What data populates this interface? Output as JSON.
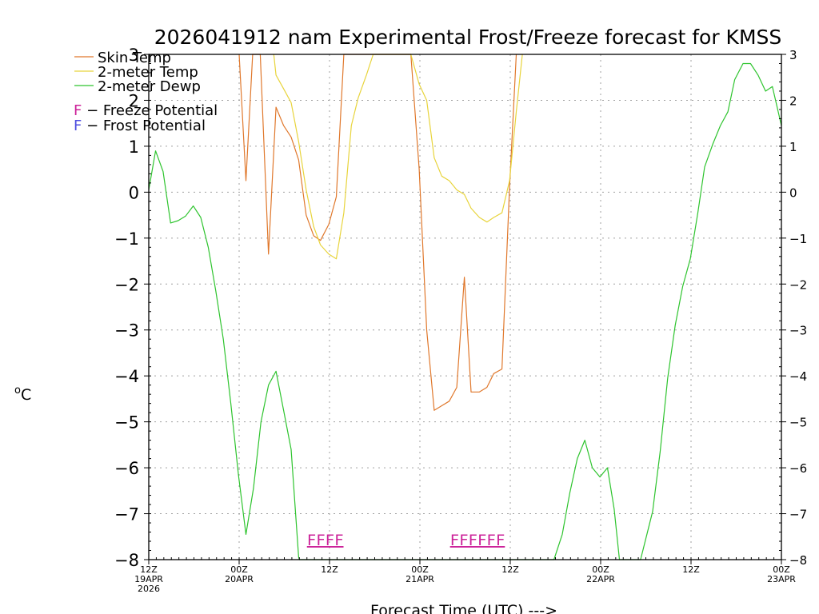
{
  "chart_data": {
    "type": "line",
    "title": "2026041912 nam Experimental Frost/Freeze forecast for KMSS",
    "ylabel_base": "o",
    "ylabel_unit": "C",
    "xlabel": "Forecast Time (UTC) --->",
    "ylim": [
      -8,
      3
    ],
    "xlim": [
      0,
      84
    ],
    "yticks": [
      3,
      2,
      1,
      0,
      -1,
      -2,
      -3,
      -4,
      -5,
      -6,
      -7,
      -8
    ],
    "ytick_labels": [
      "3",
      "2",
      "1",
      "0",
      "−1",
      "−2",
      "−3",
      "−4",
      "−5",
      "−6",
      "−7",
      "−8"
    ],
    "xticks": [
      {
        "hour": 0,
        "lines": [
          "12Z",
          "19APR",
          "2026"
        ]
      },
      {
        "hour": 12,
        "lines": [
          "00Z",
          "20APR"
        ]
      },
      {
        "hour": 24,
        "lines": [
          "12Z"
        ]
      },
      {
        "hour": 36,
        "lines": [
          "00Z",
          "21APR"
        ]
      },
      {
        "hour": 48,
        "lines": [
          "12Z"
        ]
      },
      {
        "hour": 60,
        "lines": [
          "00Z",
          "22APR"
        ]
      },
      {
        "hour": 72,
        "lines": [
          "12Z"
        ]
      },
      {
        "hour": 84,
        "lines": [
          "00Z",
          "23APR"
        ]
      }
    ],
    "series": [
      {
        "name": "Skin Temp",
        "color": "#e0782c",
        "points": [
          [
            12,
            3.0
          ],
          [
            12.9,
            0.25
          ],
          [
            13.8,
            3.0
          ],
          [
            14.8,
            3.0
          ],
          [
            15.9,
            -1.35
          ],
          [
            16.9,
            1.85
          ],
          [
            17.9,
            1.45
          ],
          [
            18.9,
            1.2
          ],
          [
            19.9,
            0.7
          ],
          [
            20.9,
            -0.5
          ],
          [
            21.9,
            -0.95
          ],
          [
            22.8,
            -1.05
          ],
          [
            23.9,
            -0.7
          ],
          [
            24.9,
            -0.1
          ],
          [
            25.9,
            3.0
          ],
          [
            34.8,
            3.0
          ],
          [
            35.9,
            0.5
          ],
          [
            36.9,
            -3.0
          ],
          [
            37.9,
            -4.75
          ],
          [
            38.9,
            -4.65
          ],
          [
            39.9,
            -4.55
          ],
          [
            40.9,
            -4.25
          ],
          [
            41.9,
            -1.85
          ],
          [
            42.8,
            -4.35
          ],
          [
            43.9,
            -4.35
          ],
          [
            44.9,
            -4.25
          ],
          [
            45.8,
            -3.95
          ],
          [
            46.9,
            -3.85
          ],
          [
            47.9,
            0.1
          ],
          [
            48.8,
            3.0
          ]
        ]
      },
      {
        "name": "2-meter Temp",
        "color": "#e8d43c",
        "points": [
          [
            16.6,
            3.0
          ],
          [
            16.9,
            2.55
          ],
          [
            17.9,
            2.25
          ],
          [
            18.9,
            1.95
          ],
          [
            19.9,
            1.1
          ],
          [
            20.9,
            0.05
          ],
          [
            21.9,
            -0.75
          ],
          [
            22.8,
            -1.15
          ],
          [
            23.9,
            -1.35
          ],
          [
            24.9,
            -1.45
          ],
          [
            25.9,
            -0.45
          ],
          [
            26.9,
            1.45
          ],
          [
            27.8,
            2.05
          ],
          [
            28.9,
            2.55
          ],
          [
            29.8,
            3.0
          ],
          [
            34.8,
            3.0
          ],
          [
            35.9,
            2.35
          ],
          [
            36.9,
            2.0
          ],
          [
            37.9,
            0.75
          ],
          [
            38.9,
            0.35
          ],
          [
            39.9,
            0.25
          ],
          [
            40.9,
            0.05
          ],
          [
            41.9,
            -0.05
          ],
          [
            42.8,
            -0.35
          ],
          [
            43.9,
            -0.55
          ],
          [
            44.9,
            -0.65
          ],
          [
            45.8,
            -0.55
          ],
          [
            46.9,
            -0.45
          ],
          [
            47.9,
            0.25
          ],
          [
            48.8,
            1.75
          ],
          [
            49.6,
            3.0
          ]
        ]
      },
      {
        "name": "2-meter Dewp",
        "color": "#2ec42e",
        "points": [
          [
            0,
            0.05
          ],
          [
            0.9,
            0.9
          ],
          [
            1.9,
            0.45
          ],
          [
            2.9,
            -0.67
          ],
          [
            3.9,
            -0.62
          ],
          [
            4.9,
            -0.52
          ],
          [
            5.9,
            -0.3
          ],
          [
            6.9,
            -0.55
          ],
          [
            7.9,
            -1.2
          ],
          [
            8.9,
            -2.15
          ],
          [
            9.9,
            -3.2
          ],
          [
            10.9,
            -4.6
          ],
          [
            11.9,
            -6.15
          ],
          [
            12.9,
            -7.45
          ],
          [
            13.9,
            -6.45
          ],
          [
            14.9,
            -5.0
          ],
          [
            15.9,
            -4.2
          ],
          [
            16.9,
            -3.9
          ],
          [
            17.9,
            -4.75
          ],
          [
            18.9,
            -5.6
          ],
          [
            19.9,
            -7.95
          ],
          [
            20.0,
            -8.0
          ],
          [
            53.8,
            -8.0
          ],
          [
            54.9,
            -7.45
          ],
          [
            55.9,
            -6.55
          ],
          [
            56.9,
            -5.8
          ],
          [
            57.9,
            -5.4
          ],
          [
            58.9,
            -6.0
          ],
          [
            59.9,
            -6.2
          ],
          [
            60.9,
            -6.0
          ],
          [
            61.8,
            -6.9
          ],
          [
            62.5,
            -8.0
          ],
          [
            65.3,
            -8.0
          ],
          [
            66.9,
            -6.95
          ],
          [
            67.9,
            -5.65
          ],
          [
            68.9,
            -4.05
          ],
          [
            69.9,
            -2.9
          ],
          [
            70.9,
            -2.05
          ],
          [
            71.9,
            -1.45
          ],
          [
            72.9,
            -0.45
          ],
          [
            73.8,
            0.55
          ],
          [
            74.9,
            1.05
          ],
          [
            75.9,
            1.45
          ],
          [
            76.9,
            1.75
          ],
          [
            77.8,
            2.45
          ],
          [
            78.9,
            2.8
          ],
          [
            79.9,
            2.8
          ],
          [
            80.9,
            2.55
          ],
          [
            81.9,
            2.2
          ],
          [
            82.8,
            2.3
          ],
          [
            84,
            1.45
          ]
        ]
      }
    ],
    "legend": [
      {
        "label": "Skin Temp",
        "color": "#e0782c"
      },
      {
        "label": "2-meter Temp",
        "color": "#e8d43c"
      },
      {
        "label": "2-meter Dewp",
        "color": "#2ec42e"
      }
    ],
    "potential_legend": [
      {
        "symbol": "F",
        "text": " − Freeze Potential",
        "color": "#cc2299"
      },
      {
        "symbol": "F",
        "text": " − Frost Potential",
        "color": "#4d4de0"
      }
    ],
    "freeze_flags": [
      {
        "text": "FFFF",
        "start_hour": 21,
        "color": "#cc2299"
      },
      {
        "text": "FFFFFF",
        "start_hour": 40,
        "color": "#cc2299"
      }
    ]
  }
}
